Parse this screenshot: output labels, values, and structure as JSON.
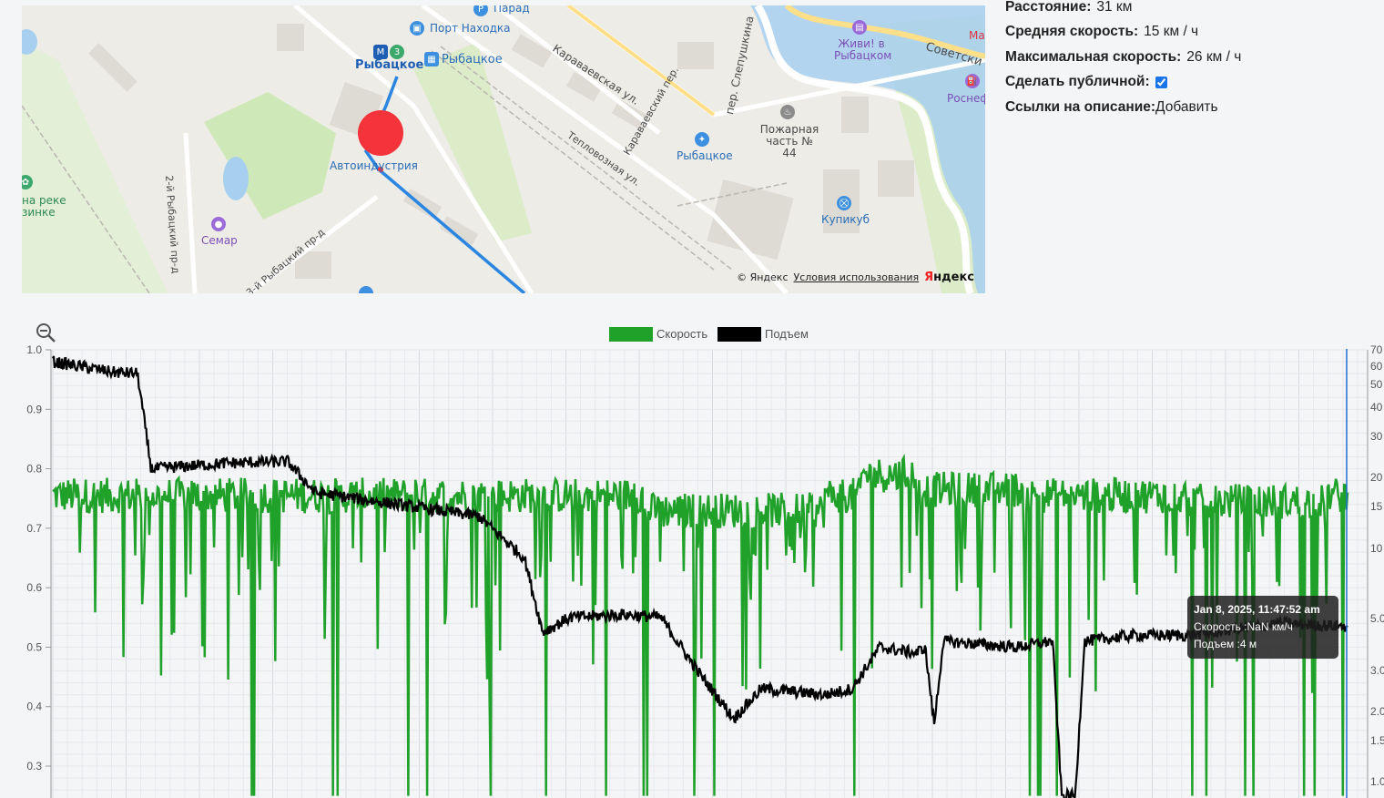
{
  "map": {
    "labels": {
      "parad": "Парад",
      "port": "Порт Находка",
      "metro": "Рыбацкое",
      "rybatskoe_bus": "Рыбацкое",
      "karavaev_st": "Караваевская ул.",
      "karavaev_per": "Караваевский пер.",
      "slepushkina": "пер. Слепушкина",
      "teplovoz": "Тепловозная ул.",
      "zhivi": "Живи! в Рыбацком",
      "sovetsk": "Советски",
      "rosneft": "Роснеф",
      "fire": "Пожарная часть № 44",
      "rybatskoe_police": "Рыбацкое",
      "kupikub": "Купикуб",
      "avtoind": "Автоиндустрия",
      "semar": "Семар",
      "na_reke": "на реке",
      "zinke": "зинке",
      "pr2": "2-й Рыбацкий пр-д",
      "pr3": "3-й Рыбацкий пр-д",
      "ma": "Ма"
    },
    "copyright": "© Яндекс",
    "terms": "Условия использования",
    "brand_a": "Я",
    "brand_b": "ндекс"
  },
  "info": {
    "distance_label": "Расстояние:",
    "distance_value": "31 км",
    "avg_label": "Средняя скорость:",
    "avg_value": "15 км / ч",
    "max_label": "Максимальная скорость:",
    "max_value": "26 км / ч",
    "public_label": "Сделать публичной:",
    "public_checked": true,
    "links_label": "Ссылки на описание:",
    "links_action": "Добавить"
  },
  "tooltip": {
    "title": "Jan 8, 2025, 11:47:52 am",
    "speed": "Скорость :NaN км/ч",
    "elev": "Подъем :4 м"
  },
  "colors": {
    "speed": "#1fa12a",
    "elev": "#000000",
    "cursor": "#1e6fd0",
    "route": "#2a86e0",
    "marker": "#f5333b"
  },
  "chart_data": {
    "type": "line",
    "legend": [
      "Скорость",
      "Подъем"
    ],
    "legend_placement": "top-center",
    "grid": true,
    "left_axis": {
      "ticks": [
        "1.0",
        "0.9",
        "0.8",
        "0.7",
        "0.6",
        "0.5",
        "0.4",
        "0.3"
      ],
      "ylim": [
        0.25,
        1.0
      ]
    },
    "right_axis": {
      "scale": "log",
      "ticks": [
        "70",
        "60",
        "50",
        "40",
        "30",
        "20",
        "15",
        "10",
        "5.0",
        "3.0",
        "2.0",
        "1.5",
        "1.0"
      ]
    },
    "series": [
      {
        "name": "Скорость",
        "description_values": "noisy speed trace, typically 0.72–0.80 on left scale with frequent dips"
      },
      {
        "name": "Подъем",
        "description_values": "elevation trace descending from ~0.98 to ~0.52 with a dip near 0.25"
      }
    ]
  }
}
